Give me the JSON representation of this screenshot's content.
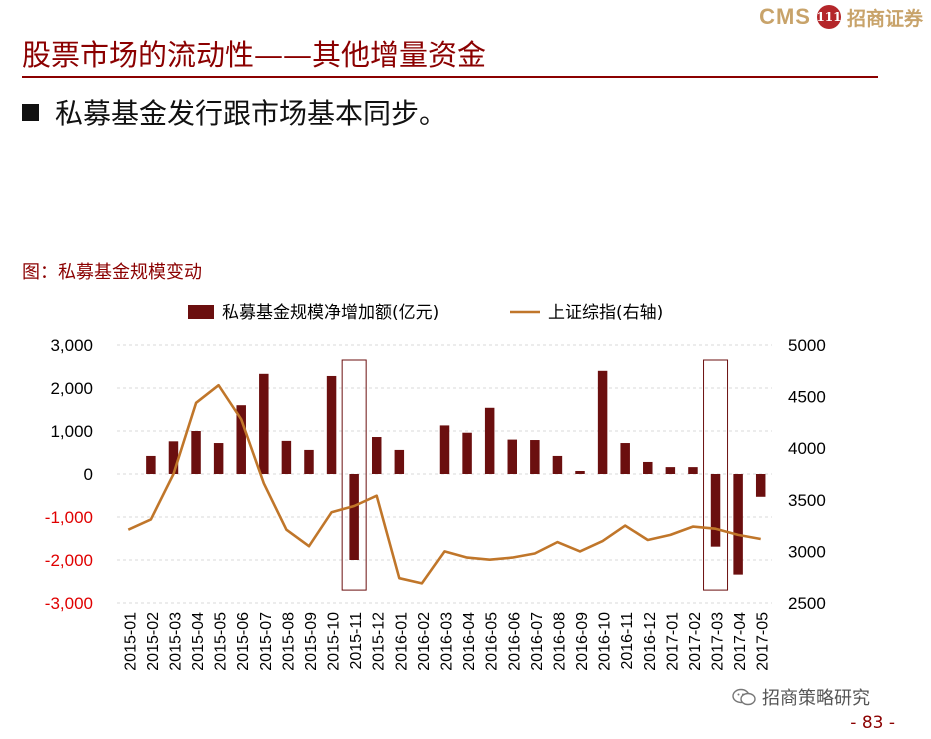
{
  "header": {
    "logo_cms": "CMS",
    "logo_badge": "111",
    "logo_brand": "招商证券"
  },
  "slide": {
    "title": "股票市场的流动性——其他增量资金",
    "bullet": "私募基金发行跟市场基本同步。",
    "chart_caption": "图：私募基金规模变动",
    "watermark": "招商策略研究",
    "page_number": "- 83 -"
  },
  "colors": {
    "title": "#8b0000",
    "bar": "#6b0f0f",
    "line": "#c0762a",
    "negative_tick": "#e00000"
  },
  "chart_data": {
    "type": "bar",
    "categories": [
      "2015-01",
      "2015-02",
      "2015-03",
      "2015-04",
      "2015-05",
      "2015-06",
      "2015-07",
      "2015-08",
      "2015-09",
      "2015-10",
      "2015-11",
      "2015-12",
      "2016-01",
      "2016-02",
      "2016-03",
      "2016-04",
      "2016-05",
      "2016-06",
      "2016-07",
      "2016-08",
      "2016-09",
      "2016-10",
      "2016-11",
      "2016-12",
      "2017-01",
      "2017-02",
      "2017-03",
      "2017-04",
      "2017-05"
    ],
    "series": [
      {
        "name": "私募基金规模净增加额(亿元)",
        "type": "bar",
        "axis": "left",
        "values": [
          0,
          420,
          760,
          1000,
          720,
          1600,
          2330,
          770,
          560,
          2280,
          -2000,
          860,
          560,
          0,
          1130,
          960,
          1540,
          800,
          790,
          420,
          70,
          2400,
          720,
          280,
          160,
          160,
          -1690,
          -2340,
          -530
        ]
      },
      {
        "name": "上证综指(右轴)",
        "type": "line",
        "axis": "right",
        "values": [
          3210,
          3310,
          3750,
          4440,
          4610,
          4280,
          3660,
          3210,
          3050,
          3380,
          3440,
          3540,
          2740,
          2690,
          3000,
          2940,
          2920,
          2940,
          2980,
          3090,
          3000,
          3100,
          3250,
          3110,
          3160,
          3240,
          3220,
          3160,
          3120
        ]
      }
    ],
    "y_left": {
      "ylim": [
        -3000,
        3000
      ],
      "ticks": [
        3000,
        2000,
        1000,
        0,
        -1000,
        -2000,
        -3000
      ],
      "tick_labels": [
        "3,000",
        "2,000",
        "1,000",
        "0",
        "-1,000",
        "-2,000",
        "-3,000"
      ]
    },
    "y_right": {
      "ylim": [
        2500,
        5000
      ],
      "ticks": [
        5000,
        4500,
        4000,
        3500,
        3000,
        2500
      ],
      "tick_labels": [
        "5000",
        "4500",
        "4000",
        "3500",
        "3000",
        "2500"
      ]
    },
    "highlights": [
      "2015-11",
      "2017-03"
    ],
    "grid": "horizontal dashed",
    "legend": "top"
  }
}
